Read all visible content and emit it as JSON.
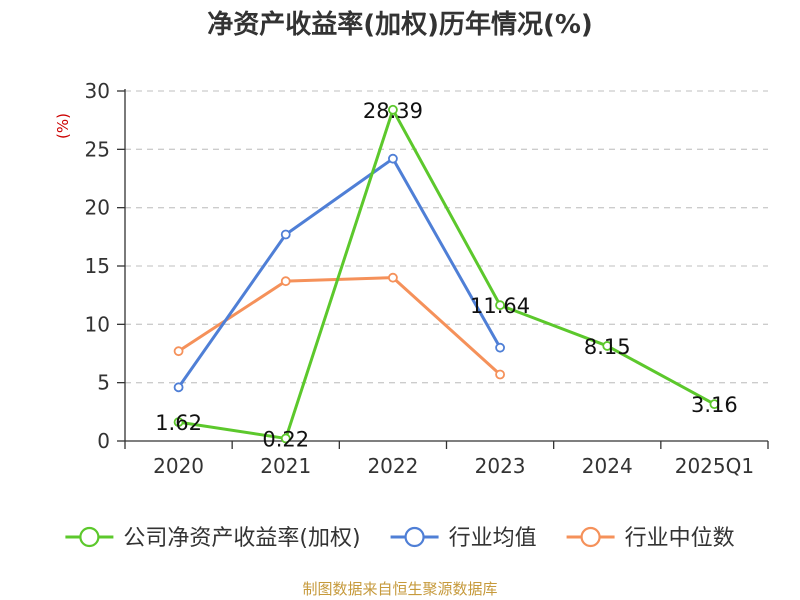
{
  "chart_data": {
    "type": "line",
    "title": "净资产收益率(加权)历年情况(%)",
    "ylabel": "(%)",
    "xlabel": "",
    "categories": [
      "2020",
      "2021",
      "2022",
      "2023",
      "2024",
      "2025Q1"
    ],
    "ylim": [
      0,
      30
    ],
    "yticks": [
      0,
      5,
      10,
      15,
      20,
      25,
      30
    ],
    "grid": true,
    "legend_position": "bottom",
    "series": [
      {
        "name": "公司净资产收益率(加权)",
        "color": "#5cc82c",
        "values": [
          1.62,
          0.22,
          28.39,
          11.64,
          8.15,
          3.16
        ],
        "data_labels": [
          "1.62",
          "0.22",
          "28.39",
          "11.64",
          "8.15",
          "3.16"
        ]
      },
      {
        "name": "行业均值",
        "color": "#4f7fd6",
        "values": [
          4.6,
          17.7,
          24.2,
          8.0,
          null,
          null
        ]
      },
      {
        "name": "行业中位数",
        "color": "#f5915a",
        "values": [
          7.7,
          13.7,
          14.0,
          5.7,
          null,
          null
        ]
      }
    ],
    "source": "制图数据来自恒生聚源数据库",
    "colors": {
      "ylabel": "#cc0000",
      "source": "#c69a3c",
      "axis": "#333333",
      "grid": "#cccccc"
    }
  }
}
